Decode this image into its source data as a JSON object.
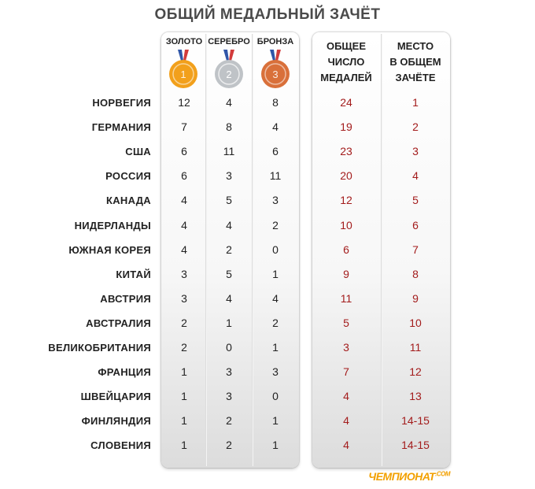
{
  "title": "ОБЩИЙ МЕДАЛЬНЫЙ ЗАЧЁТ",
  "columns": {
    "gold": "ЗОЛОТО",
    "silver": "СЕРЕБРО",
    "bronze": "БРОНЗА",
    "total": [
      "ОБЩЕЕ",
      "ЧИСЛО",
      "МЕДАЛЕЙ"
    ],
    "rank": [
      "МЕСТО",
      "В ОБЩЕМ",
      "ЗАЧЁТЕ"
    ]
  },
  "medals": {
    "gold": {
      "color": "#f2a01b",
      "digit": "1"
    },
    "silver": {
      "color": "#bfc3c7",
      "digit": "2"
    },
    "bronze": {
      "color": "#d9703a",
      "digit": "3"
    }
  },
  "brand": {
    "name": "ЧЕМПИОНАТ",
    "suffix": ".COM",
    "color": "#f2a000"
  },
  "chart_data": {
    "type": "table",
    "title": "ОБЩИЙ МЕДАЛЬНЫЙ ЗАЧЁТ",
    "headers": [
      "ЗОЛОТО",
      "СЕРЕБРО",
      "БРОНЗА",
      "ОБЩЕЕ ЧИСЛО МЕДАЛЕЙ",
      "МЕСТО В ОБЩЕМ ЗАЧЁТЕ"
    ],
    "rows": [
      {
        "country": "НОРВЕГИЯ",
        "gold": 12,
        "silver": 4,
        "bronze": 8,
        "total": 24,
        "rank": "1"
      },
      {
        "country": "ГЕРМАНИЯ",
        "gold": 7,
        "silver": 8,
        "bronze": 4,
        "total": 19,
        "rank": "2"
      },
      {
        "country": "США",
        "gold": 6,
        "silver": 11,
        "bronze": 6,
        "total": 23,
        "rank": "3"
      },
      {
        "country": "РОССИЯ",
        "gold": 6,
        "silver": 3,
        "bronze": 11,
        "total": 20,
        "rank": "4"
      },
      {
        "country": "КАНАДА",
        "gold": 4,
        "silver": 5,
        "bronze": 3,
        "total": 12,
        "rank": "5"
      },
      {
        "country": "НИДЕРЛАНДЫ",
        "gold": 4,
        "silver": 4,
        "bronze": 2,
        "total": 10,
        "rank": "6"
      },
      {
        "country": "ЮЖНАЯ КОРЕЯ",
        "gold": 4,
        "silver": 2,
        "bronze": 0,
        "total": 6,
        "rank": "7"
      },
      {
        "country": "КИТАЙ",
        "gold": 3,
        "silver": 5,
        "bronze": 1,
        "total": 9,
        "rank": "8"
      },
      {
        "country": "АВСТРИЯ",
        "gold": 3,
        "silver": 4,
        "bronze": 4,
        "total": 11,
        "rank": "9"
      },
      {
        "country": "АВСТРАЛИЯ",
        "gold": 2,
        "silver": 1,
        "bronze": 2,
        "total": 5,
        "rank": "10"
      },
      {
        "country": "ВЕЛИКОБРИТАНИЯ",
        "gold": 2,
        "silver": 0,
        "bronze": 1,
        "total": 3,
        "rank": "11"
      },
      {
        "country": "ФРАНЦИЯ",
        "gold": 1,
        "silver": 3,
        "bronze": 3,
        "total": 7,
        "rank": "12"
      },
      {
        "country": "ШВЕЙЦАРИЯ",
        "gold": 1,
        "silver": 3,
        "bronze": 0,
        "total": 4,
        "rank": "13"
      },
      {
        "country": "ФИНЛЯНДИЯ",
        "gold": 1,
        "silver": 2,
        "bronze": 1,
        "total": 4,
        "rank": "14-15"
      },
      {
        "country": "СЛОВЕНИЯ",
        "gold": 1,
        "silver": 2,
        "bronze": 1,
        "total": 4,
        "rank": "14-15"
      }
    ]
  }
}
